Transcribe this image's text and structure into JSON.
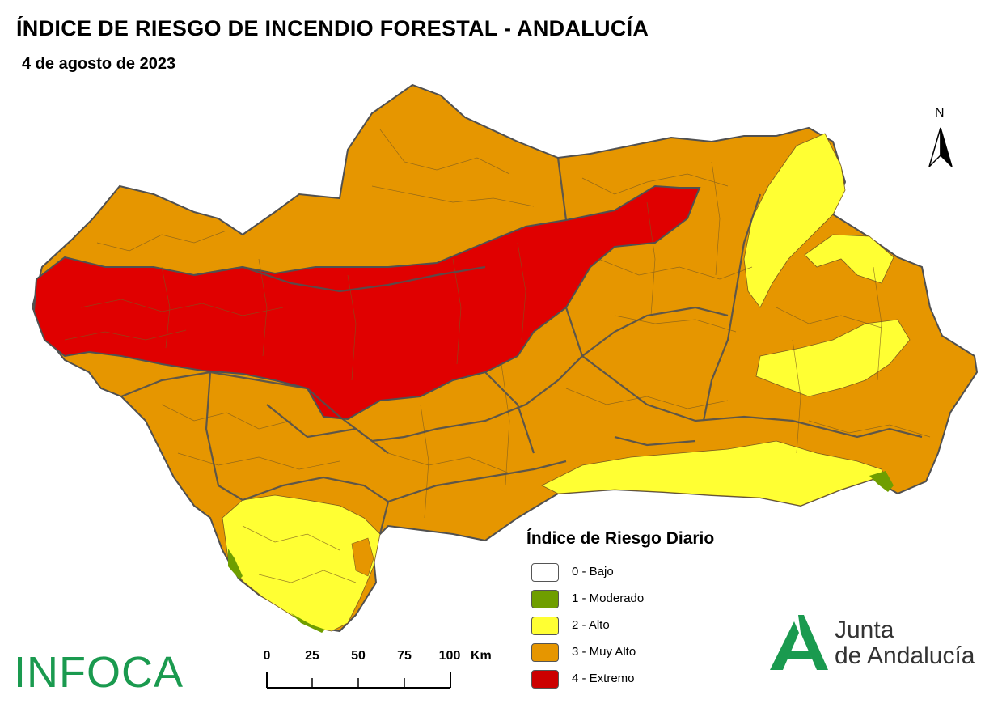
{
  "title": "ÍNDICE DE RIESGO DE INCENDIO FORESTAL - ANDALUCÍA",
  "subtitle": "4 de agosto de 2023",
  "north_arrow": {
    "label": "N"
  },
  "legend": {
    "title": "Índice de Riesgo Diario",
    "items": [
      {
        "label": "0 - Bajo",
        "color": "#ffffff"
      },
      {
        "label": "1 - Moderado",
        "color": "#6f9e00"
      },
      {
        "label": "2 - Alto",
        "color": "#ffff33"
      },
      {
        "label": "3 - Muy Alto",
        "color": "#e69600"
      },
      {
        "label": "4 - Extremo",
        "color": "#e00000"
      }
    ]
  },
  "scale_bar": {
    "ticks": [
      "0",
      "25",
      "50",
      "75",
      "100"
    ],
    "unit": "Km"
  },
  "logos": {
    "infoca": "INFOCA",
    "junta_line1": "Junta",
    "junta_line2": "de Andalucía",
    "junta_color": "#1a9a4f"
  },
  "colors": {
    "moderado": "#6f9e00",
    "alto": "#ffff33",
    "muy_alto": "#e69600",
    "extremo": "#e00000",
    "province_border": "#505050",
    "municipal_border": "#7a5a20"
  }
}
